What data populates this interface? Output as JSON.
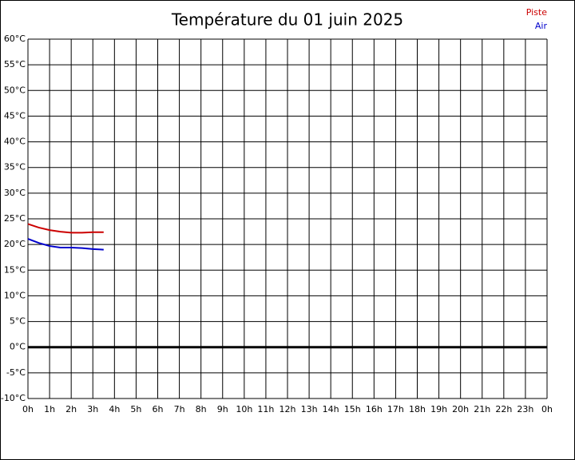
{
  "chart_data": {
    "type": "line",
    "title": "Température du 01 juin 2025",
    "x": [
      0,
      0.5,
      1,
      1.5,
      2,
      2.5,
      3,
      3.5
    ],
    "series": [
      {
        "name": "Piste",
        "color": "#cc0000",
        "values": [
          24.0,
          23.3,
          22.8,
          22.5,
          22.3,
          22.3,
          22.4,
          22.4
        ]
      },
      {
        "name": "Air",
        "color": "#0000cc",
        "values": [
          21.1,
          20.3,
          19.7,
          19.4,
          19.4,
          19.3,
          19.1,
          19.0
        ]
      }
    ],
    "xlim": [
      0,
      24
    ],
    "ylim": [
      -10,
      60
    ],
    "xticks": [
      {
        "value": 0,
        "label": "0h"
      },
      {
        "value": 1,
        "label": "1h"
      },
      {
        "value": 2,
        "label": "2h"
      },
      {
        "value": 3,
        "label": "3h"
      },
      {
        "value": 4,
        "label": "4h"
      },
      {
        "value": 5,
        "label": "5h"
      },
      {
        "value": 6,
        "label": "6h"
      },
      {
        "value": 7,
        "label": "7h"
      },
      {
        "value": 8,
        "label": "8h"
      },
      {
        "value": 9,
        "label": "9h"
      },
      {
        "value": 10,
        "label": "10h"
      },
      {
        "value": 11,
        "label": "11h"
      },
      {
        "value": 12,
        "label": "12h"
      },
      {
        "value": 13,
        "label": "13h"
      },
      {
        "value": 14,
        "label": "14h"
      },
      {
        "value": 15,
        "label": "15h"
      },
      {
        "value": 16,
        "label": "16h"
      },
      {
        "value": 17,
        "label": "17h"
      },
      {
        "value": 18,
        "label": "18h"
      },
      {
        "value": 19,
        "label": "19h"
      },
      {
        "value": 20,
        "label": "20h"
      },
      {
        "value": 21,
        "label": "21h"
      },
      {
        "value": 22,
        "label": "22h"
      },
      {
        "value": 23,
        "label": "23h"
      },
      {
        "value": 24,
        "label": "0h"
      }
    ],
    "yticks": [
      {
        "value": -10,
        "label": "-10°C"
      },
      {
        "value": -5,
        "label": "-5°C"
      },
      {
        "value": 0,
        "label": "0°C"
      },
      {
        "value": 5,
        "label": "5°C"
      },
      {
        "value": 10,
        "label": "10°C"
      },
      {
        "value": 15,
        "label": "15°C"
      },
      {
        "value": 20,
        "label": "20°C"
      },
      {
        "value": 25,
        "label": "25°C"
      },
      {
        "value": 30,
        "label": "30°C"
      },
      {
        "value": 35,
        "label": "35°C"
      },
      {
        "value": 40,
        "label": "40°C"
      },
      {
        "value": 45,
        "label": "45°C"
      },
      {
        "value": 50,
        "label": "50°C"
      },
      {
        "value": 55,
        "label": "55°C"
      },
      {
        "value": 60,
        "label": "60°C"
      }
    ],
    "grid": true,
    "legend": "top-right"
  }
}
